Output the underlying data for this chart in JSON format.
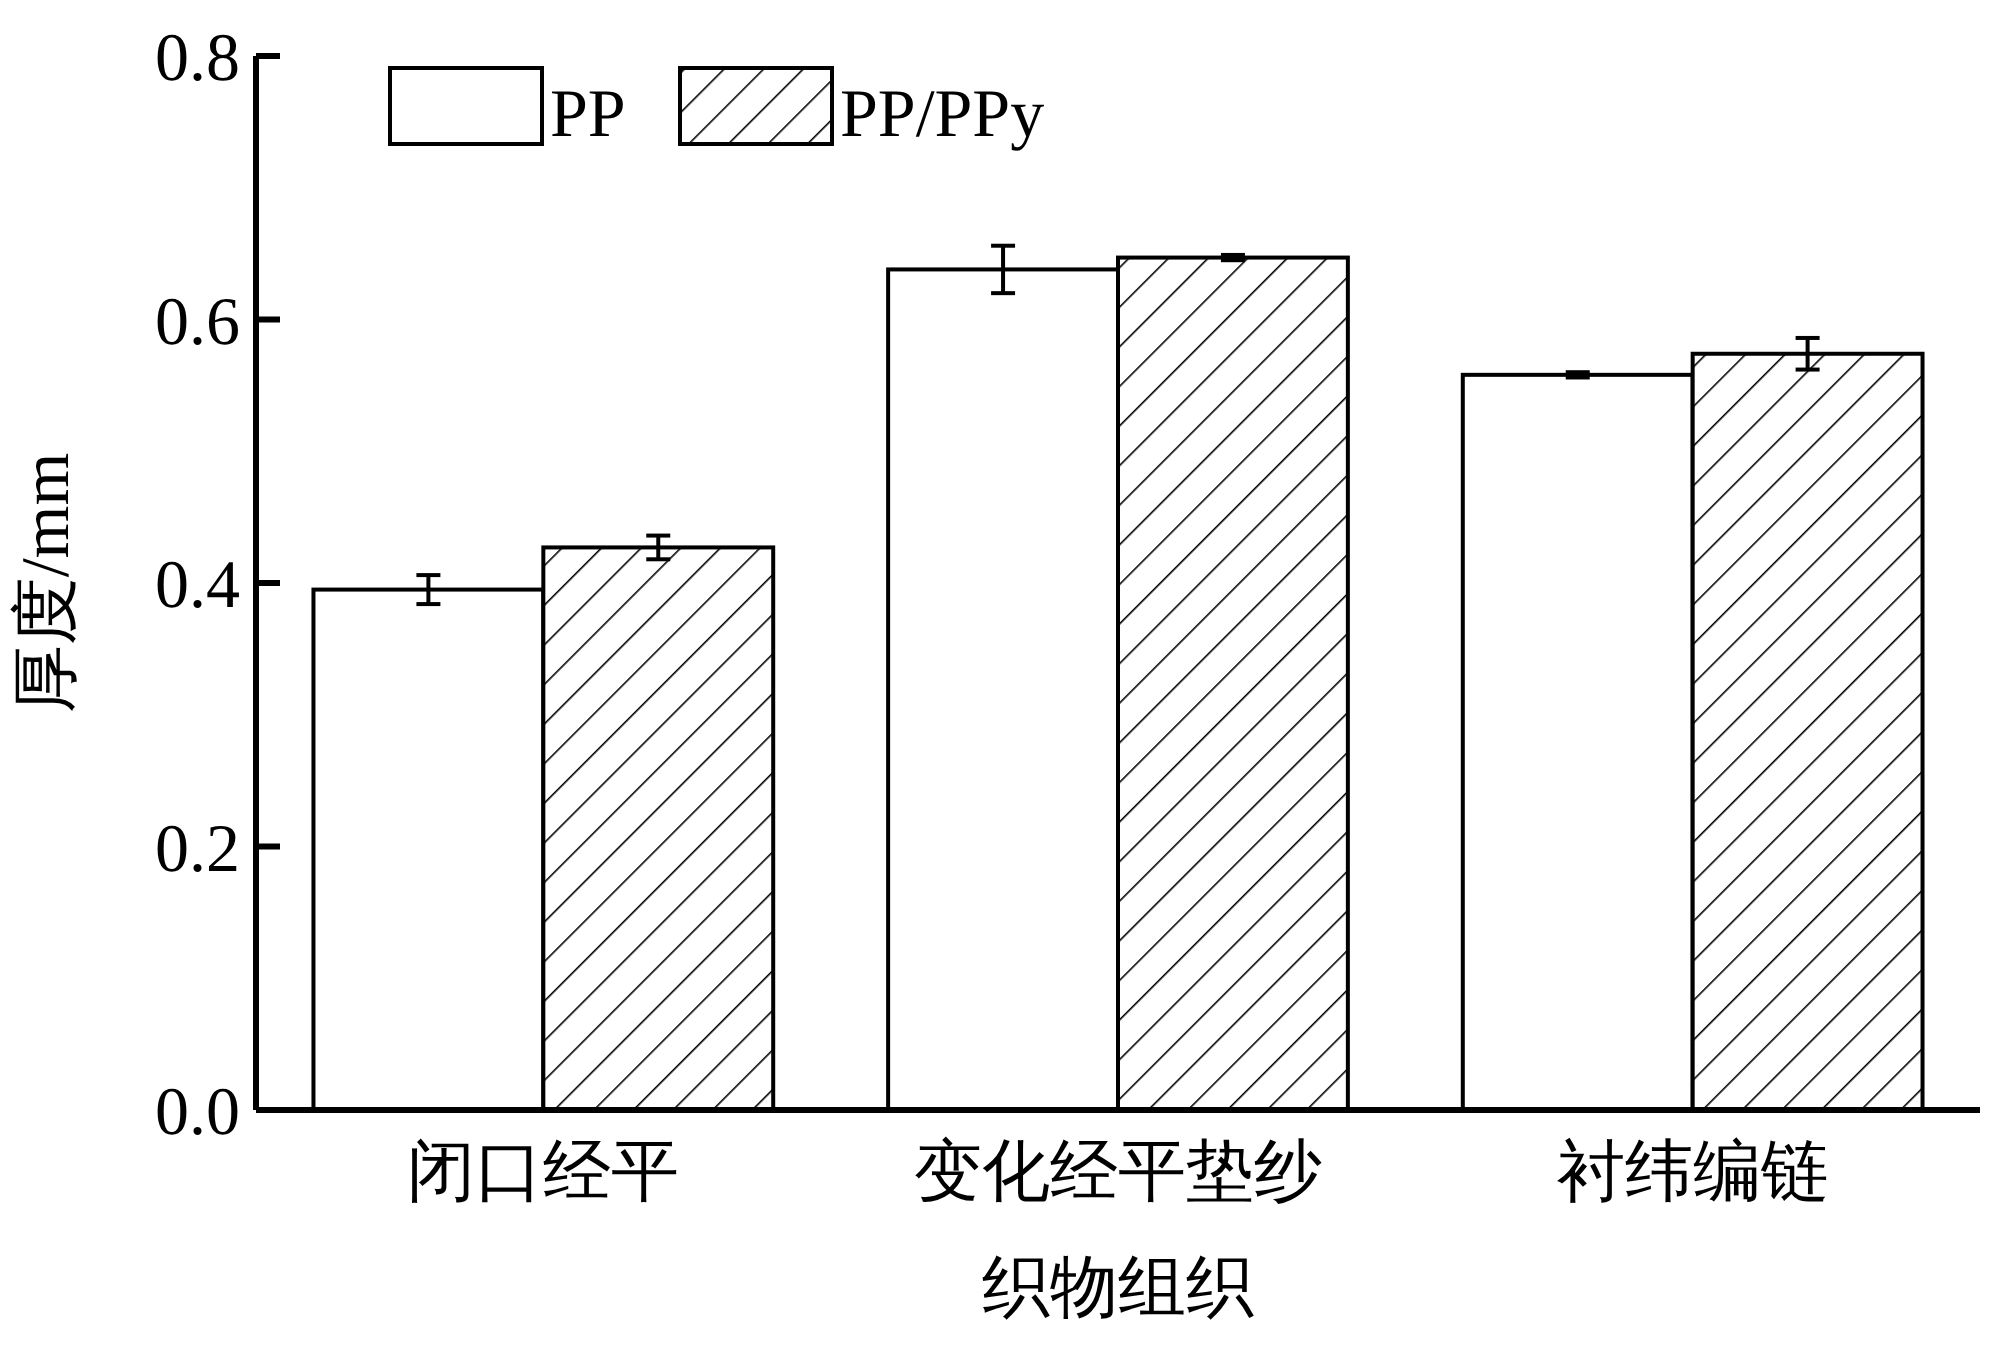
{
  "chart_data": {
    "type": "bar",
    "xlabel": "织物组织",
    "ylabel": "厚度/mm",
    "categories": [
      "闭口经平",
      "变化经平垫纱",
      "衬纬编链"
    ],
    "series": [
      {
        "name": "PP",
        "color": "#ffffff",
        "values": [
          0.395,
          0.638,
          0.558
        ],
        "errors": [
          0.011,
          0.018,
          0.002
        ]
      },
      {
        "name": "PP/PPy",
        "color": "#ffffff",
        "values": [
          0.427,
          0.647,
          0.574
        ],
        "errors": [
          0.009,
          0.002,
          0.012
        ]
      }
    ],
    "ylim": [
      0,
      0.8
    ],
    "yticks": [
      {
        "value": 0,
        "label": "0.0"
      },
      {
        "value": 0.2,
        "label": "0.2"
      },
      {
        "value": 0.4,
        "label": "0.4"
      },
      {
        "value": 0.6,
        "label": "0.6"
      },
      {
        "value": 0.8,
        "label": "0.8"
      }
    ],
    "grid": false,
    "legend": "top left"
  }
}
